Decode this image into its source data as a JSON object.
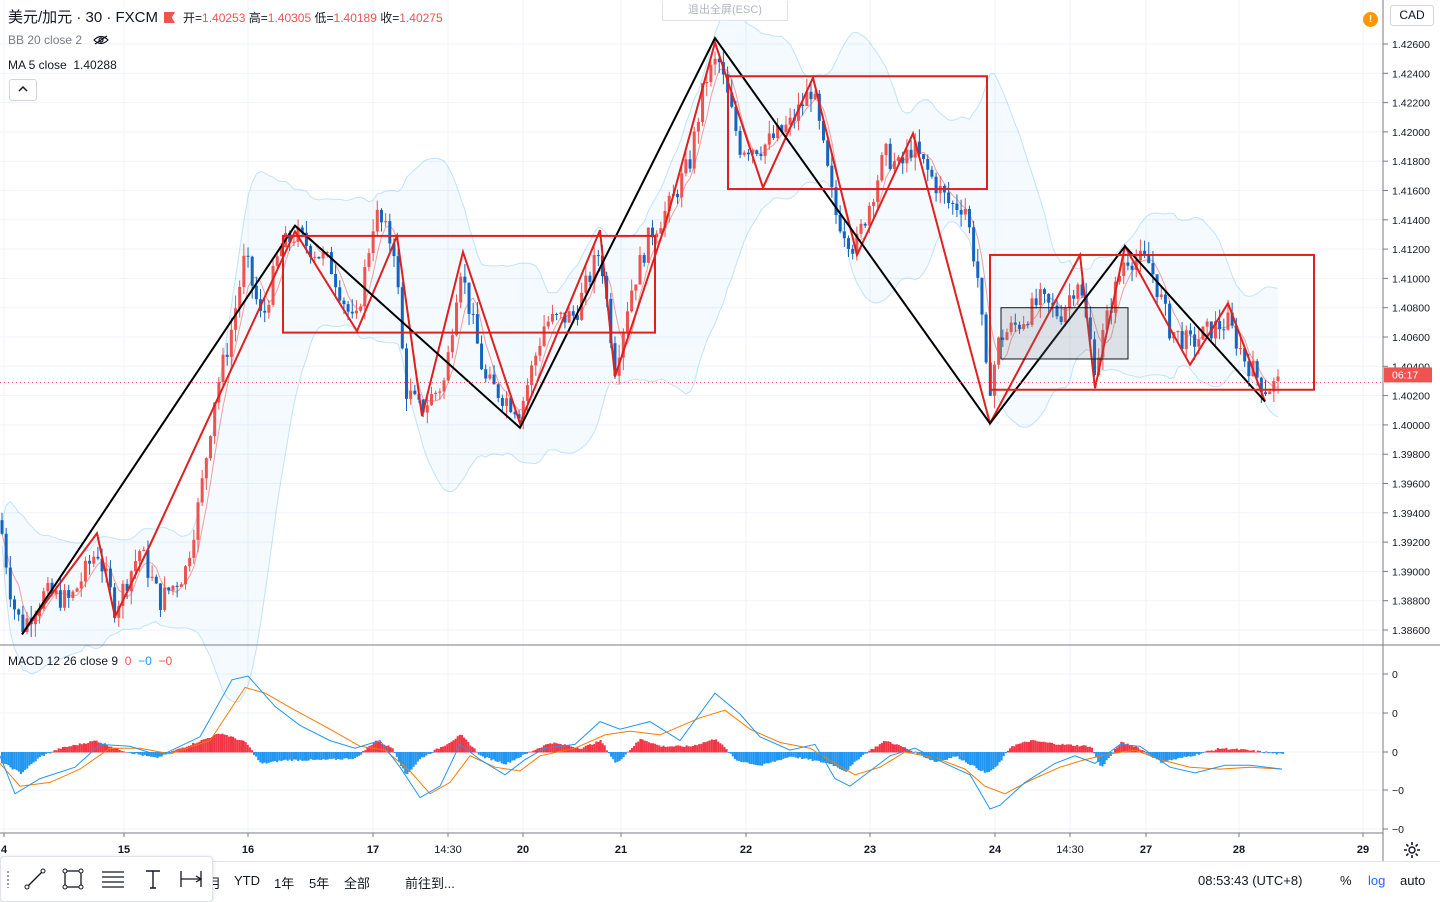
{
  "header": {
    "symbol": "美元/加元 · 30 · FXCM",
    "ohlc": [
      {
        "label": "开",
        "value": "1.40253"
      },
      {
        "label": "高",
        "value": "1.40305"
      },
      {
        "label": "低",
        "value": "1.40189"
      },
      {
        "label": "收",
        "value": "1.40275"
      }
    ],
    "indicators": [
      {
        "name": "BB 20 close 2",
        "value": ""
      },
      {
        "name": "MA 5 close",
        "value": "1.40288"
      }
    ],
    "exit_fullscreen": "退出全屏(ESC)",
    "alert_badge": "!",
    "currency": "CAD"
  },
  "macd_legend": {
    "name": "MACD 12 26 close 9",
    "v1": "0",
    "v2": "−0",
    "v3": "−0"
  },
  "toolbar": {
    "ranges": [
      "月",
      "YTD",
      "1年",
      "5年",
      "全部"
    ],
    "goto": "前往到...",
    "time": "08:53:43 (UTC+8)",
    "percent": "%",
    "log": "log",
    "auto": "auto"
  },
  "colors": {
    "up": "#ef5350",
    "down": "#1565c0",
    "zigzag_major": "#000000",
    "zigzag_minor": "#e01f1f",
    "macd_line": "#2196f3",
    "signal_line": "#f57c00"
  },
  "chart_data": [
    {
      "type": "candlestick",
      "title": "美元/加元 · 30 · FXCM",
      "ylim": [
        1.3852,
        1.4272
      ],
      "y_ticks": [
        "1.42600",
        "1.42400",
        "1.42200",
        "1.42000",
        "1.41800",
        "1.41600",
        "1.41400",
        "1.41200",
        "1.41000",
        "1.40800",
        "1.40600",
        "1.40400",
        "1.40200",
        "1.40000",
        "1.39800",
        "1.39600",
        "1.39400",
        "1.39200",
        "1.39000",
        "1.38800",
        "1.38600"
      ],
      "x_labels": [
        "4",
        "15",
        "16",
        "17",
        "14:30",
        "20",
        "21",
        "22",
        "23",
        "24",
        "14:30",
        "27",
        "28",
        "29"
      ],
      "last_price_label": "06:17",
      "last_price": 1.4029,
      "price_path": [
        [
          0,
          1.3935
        ],
        [
          12,
          1.388
        ],
        [
          22,
          1.3862
        ],
        [
          45,
          1.3885
        ],
        [
          70,
          1.388
        ],
        [
          97,
          1.3915
        ],
        [
          115,
          1.3875
        ],
        [
          140,
          1.3915
        ],
        [
          160,
          1.388
        ],
        [
          185,
          1.39
        ],
        [
          200,
          1.395
        ],
        [
          215,
          1.402
        ],
        [
          230,
          1.406
        ],
        [
          245,
          1.4115
        ],
        [
          262,
          1.407
        ],
        [
          280,
          1.412
        ],
        [
          295,
          1.413
        ],
        [
          330,
          1.411
        ],
        [
          355,
          1.4065
        ],
        [
          375,
          1.4145
        ],
        [
          395,
          1.412
        ],
        [
          405,
          1.4025
        ],
        [
          420,
          1.401
        ],
        [
          445,
          1.403
        ],
        [
          460,
          1.411
        ],
        [
          485,
          1.403
        ],
        [
          520,
          1.401
        ],
        [
          545,
          1.407
        ],
        [
          575,
          1.4075
        ],
        [
          600,
          1.412
        ],
        [
          615,
          1.404
        ],
        [
          630,
          1.409
        ],
        [
          650,
          1.413
        ],
        [
          670,
          1.415
        ],
        [
          690,
          1.418
        ],
        [
          705,
          1.4235
        ],
        [
          718,
          1.425
        ],
        [
          740,
          1.419
        ],
        [
          763,
          1.419
        ],
        [
          790,
          1.4205
        ],
        [
          812,
          1.423
        ],
        [
          835,
          1.4145
        ],
        [
          855,
          1.412
        ],
        [
          885,
          1.4185
        ],
        [
          900,
          1.4175
        ],
        [
          912,
          1.419
        ],
        [
          935,
          1.4165
        ],
        [
          950,
          1.415
        ],
        [
          965,
          1.415
        ],
        [
          978,
          1.41
        ],
        [
          988,
          1.402
        ],
        [
          1000,
          1.406
        ],
        [
          1020,
          1.407
        ],
        [
          1040,
          1.4085
        ],
        [
          1060,
          1.4075
        ],
        [
          1078,
          1.41
        ],
        [
          1095,
          1.404
        ],
        [
          1110,
          1.408
        ],
        [
          1125,
          1.4115
        ],
        [
          1150,
          1.411
        ],
        [
          1170,
          1.4065
        ],
        [
          1190,
          1.4055
        ],
        [
          1210,
          1.4065
        ],
        [
          1228,
          1.407
        ],
        [
          1245,
          1.4045
        ],
        [
          1265,
          1.4025
        ],
        [
          1282,
          1.4029
        ]
      ],
      "bollinger_band": {
        "period": 20,
        "stdev": 2
      },
      "ma5": true,
      "zigzag_major": [
        [
          22,
          1.3857
        ],
        [
          295,
          1.4136
        ],
        [
          520,
          1.3998
        ],
        [
          715,
          1.4264
        ],
        [
          990,
          1.4001
        ],
        [
          1125,
          1.4122
        ],
        [
          1265,
          1.4016
        ]
      ],
      "zigzag_minor": [
        [
          22,
          1.3857
        ],
        [
          97,
          1.3926
        ],
        [
          115,
          1.3869
        ],
        [
          150,
          1.3918
        ],
        [
          295,
          1.4132
        ],
        [
          357,
          1.4064
        ],
        [
          397,
          1.4129
        ],
        [
          422,
          1.4006
        ],
        [
          463,
          1.4118
        ],
        [
          520,
          1.4001
        ],
        [
          600,
          1.4133
        ],
        [
          615,
          1.4033
        ],
        [
          665,
          1.4136
        ],
        [
          715,
          1.4261
        ],
        [
          763,
          1.4162
        ],
        [
          813,
          1.4237
        ],
        [
          857,
          1.4116
        ],
        [
          913,
          1.4199
        ],
        [
          990,
          1.4001
        ],
        [
          1080,
          1.4116
        ],
        [
          1095,
          1.4025
        ],
        [
          1125,
          1.4122
        ],
        [
          1190,
          1.4041
        ],
        [
          1228,
          1.4083
        ],
        [
          1265,
          1.4016
        ]
      ],
      "boxes": [
        {
          "x": [
            283,
            655
          ],
          "y": [
            1.4129,
            1.4063
          ],
          "style": "red"
        },
        {
          "x": [
            728,
            987
          ],
          "y": [
            1.4238,
            1.4161
          ],
          "style": "red"
        },
        {
          "x": [
            990,
            1314
          ],
          "y": [
            1.4116,
            1.4024
          ],
          "style": "red"
        },
        {
          "x": [
            1001,
            1128
          ],
          "y": [
            1.408,
            1.4045
          ],
          "style": "gray"
        }
      ]
    },
    {
      "type": "macd",
      "title": "MACD 12 26 close 9",
      "y_ticks": [
        "0",
        "0",
        "0",
        "−0",
        "−0"
      ],
      "macd_line": [
        [
          0,
          -0.1
        ],
        [
          15,
          -1.1
        ],
        [
          40,
          -0.7
        ],
        [
          75,
          -0.4
        ],
        [
          100,
          0.2
        ],
        [
          130,
          0.15
        ],
        [
          160,
          -0.1
        ],
        [
          200,
          0.4
        ],
        [
          232,
          1.9
        ],
        [
          248,
          2.0
        ],
        [
          275,
          1.2
        ],
        [
          300,
          0.7
        ],
        [
          330,
          0.3
        ],
        [
          355,
          0.1
        ],
        [
          380,
          0.3
        ],
        [
          400,
          -0.4
        ],
        [
          420,
          -1.2
        ],
        [
          440,
          -0.9
        ],
        [
          460,
          0.2
        ],
        [
          480,
          -0.2
        ],
        [
          505,
          -0.6
        ],
        [
          525,
          -0.2
        ],
        [
          545,
          0.1
        ],
        [
          575,
          0.2
        ],
        [
          600,
          0.8
        ],
        [
          620,
          0.6
        ],
        [
          650,
          0.8
        ],
        [
          680,
          0.3
        ],
        [
          715,
          1.55
        ],
        [
          740,
          1.0
        ],
        [
          760,
          0.4
        ],
        [
          790,
          0.05
        ],
        [
          815,
          0.2
        ],
        [
          835,
          -0.7
        ],
        [
          850,
          -0.9
        ],
        [
          870,
          -0.5
        ],
        [
          890,
          -0.1
        ],
        [
          915,
          0.1
        ],
        [
          945,
          -0.3
        ],
        [
          970,
          -0.6
        ],
        [
          990,
          -1.5
        ],
        [
          1000,
          -1.4
        ],
        [
          1025,
          -0.8
        ],
        [
          1055,
          -0.3
        ],
        [
          1075,
          -0.1
        ],
        [
          1095,
          -0.3
        ],
        [
          1120,
          0.2
        ],
        [
          1140,
          0.15
        ],
        [
          1170,
          -0.4
        ],
        [
          1195,
          -0.55
        ],
        [
          1225,
          -0.35
        ],
        [
          1250,
          -0.35
        ],
        [
          1282,
          -0.45
        ]
      ],
      "signal_line": [
        [
          0,
          -0.3
        ],
        [
          20,
          -0.9
        ],
        [
          50,
          -0.8
        ],
        [
          80,
          -0.45
        ],
        [
          110,
          0.1
        ],
        [
          140,
          0.1
        ],
        [
          170,
          -0.05
        ],
        [
          210,
          0.3
        ],
        [
          245,
          1.7
        ],
        [
          265,
          1.55
        ],
        [
          295,
          1.1
        ],
        [
          330,
          0.6
        ],
        [
          360,
          0.15
        ],
        [
          385,
          0.05
        ],
        [
          410,
          -0.5
        ],
        [
          430,
          -1.1
        ],
        [
          450,
          -0.8
        ],
        [
          470,
          -0.1
        ],
        [
          495,
          -0.4
        ],
        [
          520,
          -0.5
        ],
        [
          540,
          -0.1
        ],
        [
          575,
          0.1
        ],
        [
          605,
          0.45
        ],
        [
          630,
          0.55
        ],
        [
          660,
          0.45
        ],
        [
          700,
          0.9
        ],
        [
          725,
          1.1
        ],
        [
          750,
          0.6
        ],
        [
          780,
          0.25
        ],
        [
          810,
          0.1
        ],
        [
          835,
          -0.3
        ],
        [
          855,
          -0.6
        ],
        [
          880,
          -0.4
        ],
        [
          905,
          0.0
        ],
        [
          935,
          -0.15
        ],
        [
          965,
          -0.45
        ],
        [
          985,
          -0.9
        ],
        [
          1005,
          -1.1
        ],
        [
          1030,
          -0.75
        ],
        [
          1060,
          -0.4
        ],
        [
          1085,
          -0.2
        ],
        [
          1110,
          -0.05
        ],
        [
          1135,
          0.05
        ],
        [
          1160,
          -0.2
        ],
        [
          1190,
          -0.4
        ],
        [
          1220,
          -0.45
        ],
        [
          1250,
          -0.4
        ],
        [
          1282,
          -0.45
        ]
      ],
      "histogram": [
        [
          0,
          -0.25
        ],
        [
          20,
          -0.55
        ],
        [
          40,
          -0.1
        ],
        [
          60,
          0.1
        ],
        [
          95,
          0.3
        ],
        [
          120,
          0.05
        ],
        [
          155,
          -0.15
        ],
        [
          175,
          0.05
        ],
        [
          205,
          0.35
        ],
        [
          220,
          0.5
        ],
        [
          245,
          0.25
        ],
        [
          260,
          -0.3
        ],
        [
          285,
          -0.2
        ],
        [
          320,
          -0.2
        ],
        [
          355,
          -0.15
        ],
        [
          375,
          0.3
        ],
        [
          392,
          0.1
        ],
        [
          405,
          -0.6
        ],
        [
          420,
          -0.15
        ],
        [
          445,
          0.2
        ],
        [
          460,
          0.45
        ],
        [
          480,
          -0.1
        ],
        [
          505,
          -0.3
        ],
        [
          520,
          -0.1
        ],
        [
          550,
          0.25
        ],
        [
          580,
          0.1
        ],
        [
          600,
          0.3
        ],
        [
          615,
          -0.3
        ],
        [
          640,
          0.35
        ],
        [
          660,
          0.15
        ],
        [
          690,
          0.15
        ],
        [
          715,
          0.35
        ],
        [
          735,
          -0.2
        ],
        [
          760,
          -0.35
        ],
        [
          790,
          -0.1
        ],
        [
          830,
          -0.3
        ],
        [
          845,
          -0.5
        ],
        [
          860,
          -0.1
        ],
        [
          885,
          0.3
        ],
        [
          905,
          0.1
        ],
        [
          935,
          -0.25
        ],
        [
          955,
          -0.1
        ],
        [
          985,
          -0.55
        ],
        [
          995,
          -0.4
        ],
        [
          1010,
          0.15
        ],
        [
          1030,
          0.3
        ],
        [
          1060,
          0.2
        ],
        [
          1090,
          0.15
        ],
        [
          1100,
          -0.4
        ],
        [
          1120,
          0.25
        ],
        [
          1135,
          0.15
        ],
        [
          1160,
          -0.25
        ],
        [
          1180,
          -0.15
        ],
        [
          1220,
          0.1
        ],
        [
          1245,
          0.05
        ],
        [
          1282,
          -0.05
        ]
      ]
    }
  ]
}
